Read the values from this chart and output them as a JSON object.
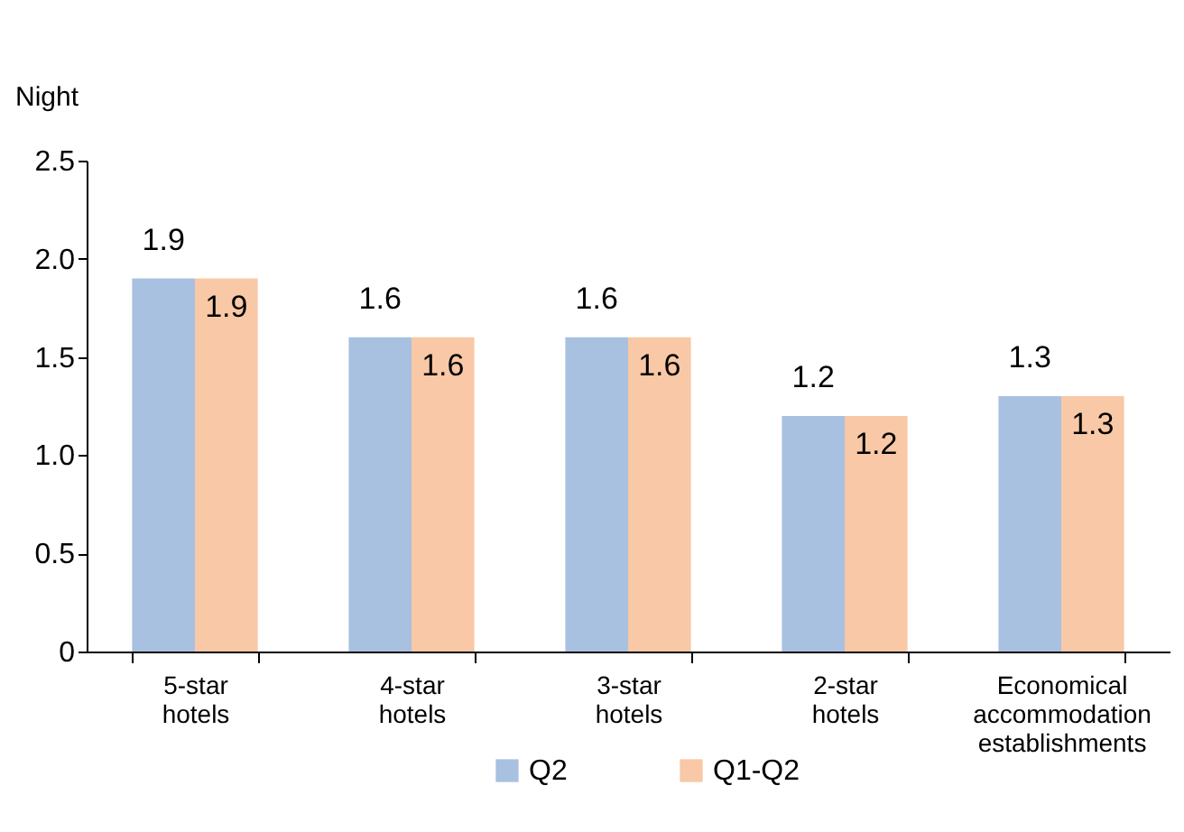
{
  "chart_data": {
    "type": "bar",
    "ylabel": "Night",
    "categories": [
      "5-star hotels",
      "4-star hotels",
      "3-star hotels",
      "2-star hotels",
      "Economical accommodation establishments"
    ],
    "series": [
      {
        "name": "Q2",
        "color": "#a9c1e0",
        "values": [
          1.9,
          1.6,
          1.6,
          1.2,
          1.3
        ]
      },
      {
        "name": "Q1-Q2",
        "color": "#f9c8a6",
        "values": [
          1.9,
          1.6,
          1.6,
          1.2,
          1.3
        ]
      }
    ],
    "ylim": [
      0,
      2.5
    ],
    "yticks": [
      {
        "value": 0,
        "label": "0"
      },
      {
        "value": 0.5,
        "label": "0.5"
      },
      {
        "value": 1,
        "label": "1.0"
      },
      {
        "value": 1.5,
        "label": "1.5"
      },
      {
        "value": 2,
        "label": "2.0"
      },
      {
        "value": 2.5,
        "label": "2.5"
      }
    ],
    "data_labels": true,
    "grid": false,
    "legend": "bottom"
  }
}
